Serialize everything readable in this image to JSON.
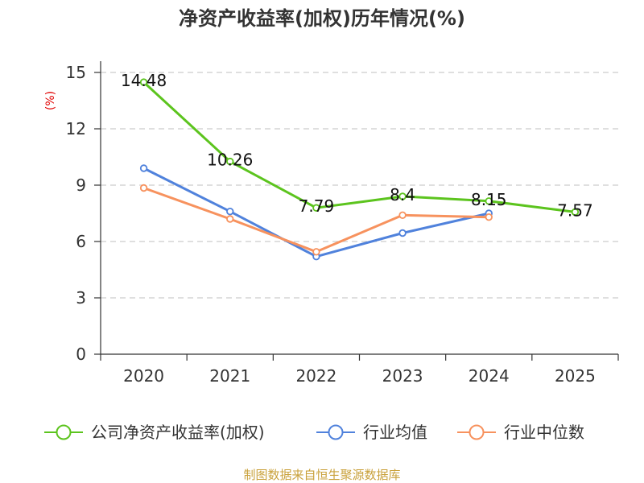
{
  "chart_data": {
    "type": "line",
    "title": "净资产收益率(加权)历年情况(%)",
    "xlabel": "",
    "ylabel": "(%)",
    "categories": [
      "2020",
      "2021",
      "2022",
      "2023",
      "2024",
      "2025"
    ],
    "ylim": [
      0,
      15
    ],
    "yticks": [
      0,
      3,
      6,
      9,
      12,
      15
    ],
    "grid": true,
    "legend": "bottom",
    "series": [
      {
        "name": "公司净资产收益率(加权)",
        "color": "#5cc41e",
        "show_labels": true,
        "values": [
          14.48,
          10.26,
          7.79,
          8.4,
          8.15,
          7.57
        ]
      },
      {
        "name": "行业均值",
        "color": "#5082dc",
        "show_labels": false,
        "values": [
          9.9,
          7.6,
          5.2,
          6.45,
          7.5,
          null
        ]
      },
      {
        "name": "行业中位数",
        "color": "#f7925e",
        "show_labels": false,
        "values": [
          8.85,
          7.2,
          5.45,
          7.4,
          7.3,
          null
        ]
      }
    ]
  },
  "footer": {
    "source": "制图数据来自恒生聚源数据库"
  },
  "colors": {
    "axis": "#333333",
    "grid": "#cccccc",
    "ylabel": "#e00000",
    "footer": "#c9a13b"
  }
}
